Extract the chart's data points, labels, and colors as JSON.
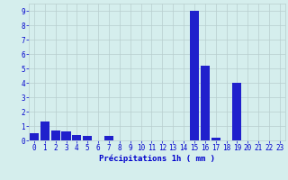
{
  "values": [
    0.5,
    1.3,
    0.7,
    0.6,
    0.4,
    0.3,
    0.0,
    0.3,
    0.0,
    0.0,
    0.0,
    0.0,
    0.0,
    0.0,
    0.0,
    9.0,
    5.2,
    0.2,
    0.0,
    4.0,
    0.0,
    0.0,
    0.0,
    0.0
  ],
  "categories": [
    "0",
    "1",
    "2",
    "3",
    "4",
    "5",
    "6",
    "7",
    "8",
    "9",
    "10",
    "11",
    "12",
    "13",
    "14",
    "15",
    "16",
    "17",
    "18",
    "19",
    "20",
    "21",
    "22",
    "23"
  ],
  "bar_color": "#2020cc",
  "background_color": "#d5eeed",
  "plot_bg_color": "#d5eeed",
  "grid_color": "#b8cece",
  "xlabel": "Précipitations 1h ( mm )",
  "xlabel_color": "#0000cc",
  "tick_color": "#0000cc",
  "ylim": [
    0,
    9.5
  ],
  "yticks": [
    0,
    1,
    2,
    3,
    4,
    5,
    6,
    7,
    8,
    9
  ],
  "tick_fontsize": 5.5,
  "label_fontsize": 6.5
}
